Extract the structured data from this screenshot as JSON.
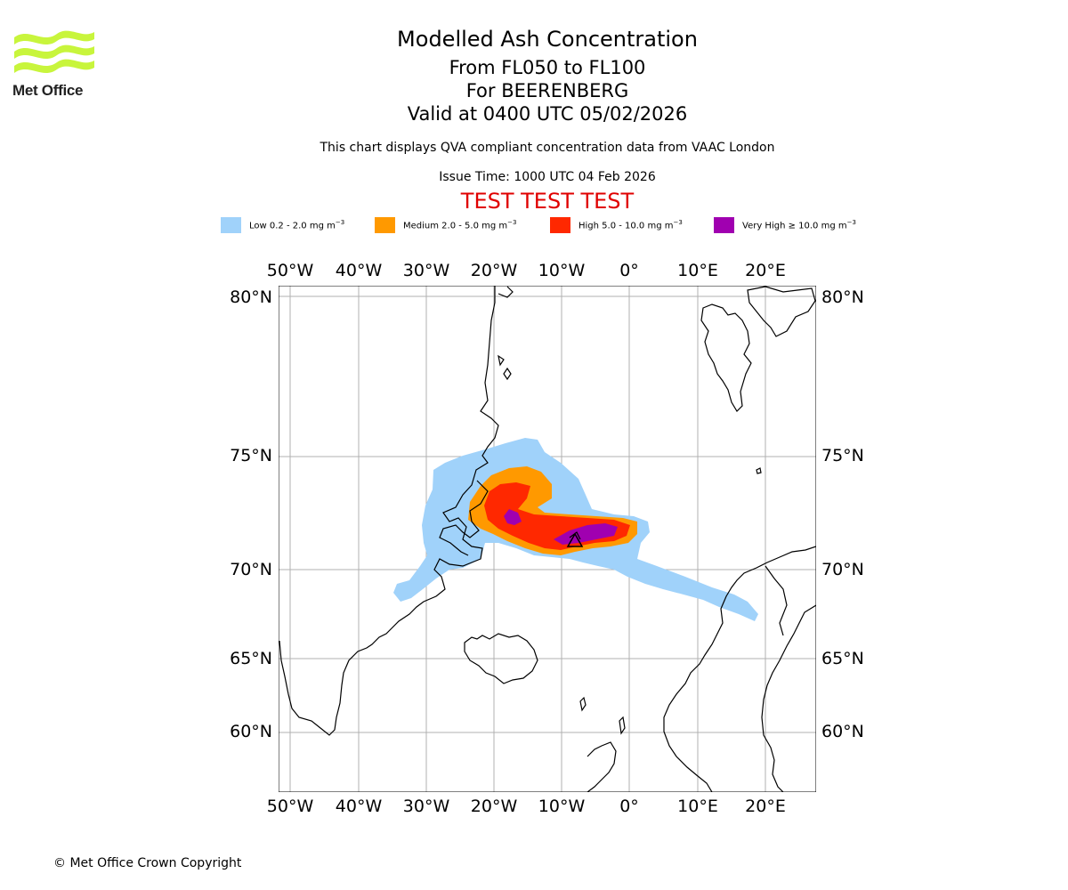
{
  "logo": {
    "name": "Met Office",
    "color": "#c8f53c"
  },
  "titles": {
    "main": "Modelled Ash Concentration",
    "levels": "From FL050 to FL100",
    "volcano": "For BEERENBERG",
    "valid": "Valid at 0400 UTC 05/02/2026",
    "disclaimer": "This chart displays QVA compliant concentration data from VAAC London",
    "issue": "Issue Time: 1000 UTC 04 Feb 2026",
    "test": "TEST TEST TEST"
  },
  "legend": [
    {
      "label": "Low 0.2 - 2.0 mg m",
      "unit_exp": "−3",
      "color": "#a0d2fa"
    },
    {
      "label": "Medium 2.0 - 5.0 mg m",
      "unit_exp": "−3",
      "color": "#ff9900"
    },
    {
      "label": "High 5.0 - 10.0 mg m",
      "unit_exp": "−3",
      "color": "#ff2800"
    },
    {
      "label": "Very High  ≥  10.0 mg m",
      "unit_exp": "−3",
      "color": "#a000b0"
    }
  ],
  "map": {
    "lon_ticks": [
      "50°W",
      "40°W",
      "30°W",
      "20°W",
      "10°W",
      "0°",
      "10°E",
      "20°E"
    ],
    "lat_ticks": [
      "80°N",
      "75°N",
      "70°N",
      "65°N",
      "60°N"
    ],
    "grid": true,
    "volcano_marker": "BEERENBERG"
  },
  "copyright": "© Met Office Crown Copyright"
}
